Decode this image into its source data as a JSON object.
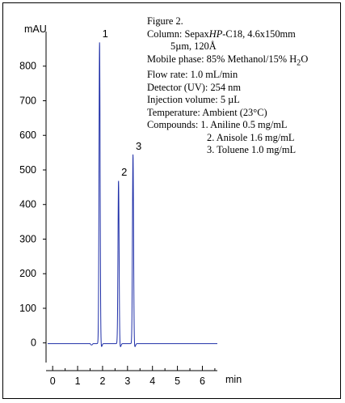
{
  "chart_data": {
    "type": "line",
    "xlabel": "min",
    "ylabel": "mAU",
    "xlim": [
      -0.2,
      6.6
    ],
    "ylim": [
      -10,
      900
    ],
    "x_ticks": [
      0,
      1,
      2,
      3,
      4,
      5,
      6
    ],
    "y_ticks": [
      0,
      100,
      200,
      300,
      400,
      500,
      600,
      700,
      800
    ],
    "grid": false,
    "baseline": -2,
    "series": [
      {
        "color": "#1f2fa8",
        "peaks": [
          {
            "label": "1",
            "x": 1.88,
            "y": 870
          },
          {
            "label": "2",
            "x": 2.64,
            "y": 470
          },
          {
            "label": "3",
            "x": 3.22,
            "y": 545
          }
        ]
      }
    ]
  },
  "caption": {
    "title": "Figure 2.",
    "column_prefix": "Column: Sepax",
    "column_brand": "HP",
    "column_rest": "-C18, 4.6x150mm",
    "column_particle": "5µm, 120Å",
    "mobile_phase_prefix": "Mobile phase: 85% Methanol/15% H",
    "mobile_phase_sub": "2",
    "mobile_phase_suffix": "O",
    "flow_rate": "Flow rate: 1.0 mL/min",
    "detector": "Detector (UV): 254 nm",
    "injection": "Injection volume: 5 µL",
    "temperature": "Temperature: Ambient (23°C)",
    "compound_1": "Compounds: 1. Aniline 0.5 mg/mL",
    "compound_2": "2. Anisole 1.6 mg/mL",
    "compound_3": "3. Toluene 1.0 mg/mL"
  }
}
